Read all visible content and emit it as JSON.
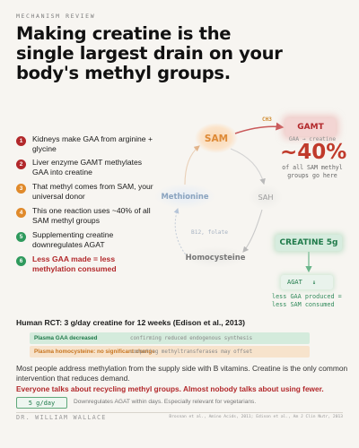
{
  "header": {
    "eyebrow": "MECHANISM REVIEW",
    "title": "Making creatine is the single largest drain on your body's methyl groups."
  },
  "steps": [
    {
      "num": "1",
      "text": "Kidneys make GAA from arginine + glycine",
      "color": "#b2282b"
    },
    {
      "num": "2",
      "text": "Liver enzyme GAMT methylates GAA into creatine",
      "color": "#b2282b"
    },
    {
      "num": "3",
      "text": "That methyl comes from SAM, your universal donor",
      "color": "#e08a2b"
    },
    {
      "num": "4",
      "text": "This one reaction uses ~40% of all SAM methyl groups",
      "color": "#e08a2b"
    },
    {
      "num": "5",
      "text": "Supplementing creatine downregulates AGAT",
      "color": "#2f9a5d"
    },
    {
      "num": "6",
      "text": "Less GAA made = less methylation consumed",
      "color": "#2f9a5d",
      "emphasis": true
    }
  ],
  "cycle": {
    "sam": "SAM",
    "methionine": "Methionine",
    "sah": "SAH",
    "homocysteine": "Homocysteine",
    "ch3": "CH3",
    "cofactor": "B12, folate"
  },
  "gamt": {
    "label": "GAMT",
    "sub": "GAA → creatine",
    "percent": "~40%",
    "percent_note": "of all SAM methyl groups go here"
  },
  "creatine": {
    "label": "CREATINE 5g",
    "agat": "AGAT",
    "agat_arrow": "↓",
    "effect": "less GAA produced = less SAM consumed"
  },
  "rct": {
    "title": "Human RCT: 3 g/day creatine for 12 weeks (Edison et al., 2013)",
    "rows": [
      {
        "label": "Plasma GAA decreased",
        "note": "confirming reduced endogenous synthesis"
      },
      {
        "label": "Plasma homocysteine: no significant change",
        "note": "competing methyltransferases may offset"
      }
    ]
  },
  "body": {
    "paragraph": "Most people address methylation from the supply side with B vitamins. Creatine is the only common intervention that reduces demand.",
    "punchline": "Everyone talks about recycling methyl groups. Almost nobody talks about using fewer."
  },
  "dose": {
    "label": "5 g/day",
    "note": "Downregulates AGAT within days. Especially relevant for vegetarians."
  },
  "footer": {
    "signature": "DR. WILLIAM WALLACE",
    "citation": "Brosnan et al., Amino Acids, 2011; Edison et al., Am J Clin Nutr, 2013"
  },
  "colors": {
    "red": "#b2282b",
    "orange": "#e08a2b",
    "green": "#2f9a5d"
  }
}
